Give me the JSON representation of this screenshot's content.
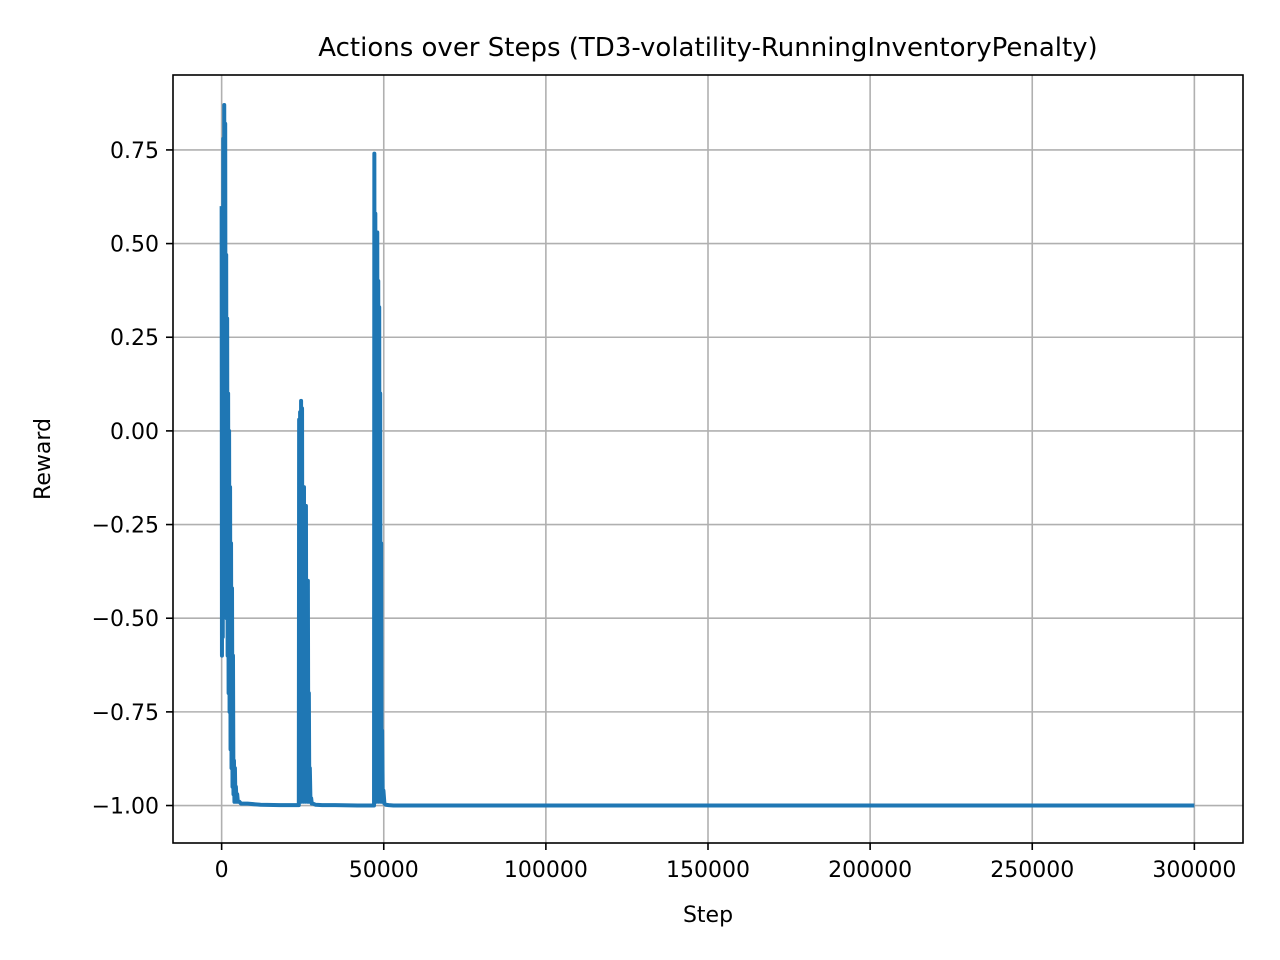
{
  "chart_data": {
    "type": "line",
    "title": "Actions over Steps (TD3-volatility-RunningInventoryPenalty)",
    "xlabel": "Step",
    "ylabel": "Reward",
    "xlim": [
      -15000,
      315000
    ],
    "ylim": [
      -1.1,
      0.95
    ],
    "x_ticks": [
      0,
      50000,
      100000,
      150000,
      200000,
      250000,
      300000
    ],
    "x_tick_labels": [
      "0",
      "50000",
      "100000",
      "150000",
      "200000",
      "250000",
      "300000"
    ],
    "y_ticks": [
      -1.0,
      -0.75,
      -0.5,
      -0.25,
      0.0,
      0.25,
      0.5,
      0.75
    ],
    "y_tick_labels": [
      "−1.00",
      "−0.75",
      "−0.50",
      "−0.25",
      "0.00",
      "0.25",
      "0.50",
      "0.75"
    ],
    "grid": true,
    "series": [
      {
        "color": "#1f77b4",
        "x": [
          0,
          100,
          200,
          350,
          500,
          650,
          800,
          950,
          1100,
          1250,
          1400,
          1550,
          1700,
          1850,
          2000,
          2150,
          2300,
          2450,
          2600,
          2750,
          2900,
          3050,
          3200,
          3350,
          3500,
          3650,
          3800,
          3950,
          4100,
          4250,
          4400,
          4600,
          4800,
          5000,
          5500,
          6000,
          8000,
          12000,
          18000,
          23800,
          23900,
          24050,
          24200,
          24350,
          24500,
          24650,
          24800,
          24950,
          25100,
          25250,
          25400,
          25550,
          25700,
          25850,
          26000,
          26150,
          26300,
          26450,
          26600,
          26750,
          26900,
          27050,
          27200,
          27400,
          27600,
          27800,
          28200,
          29000,
          31000,
          35000,
          42000,
          47000,
          47100,
          47250,
          47400,
          47550,
          47700,
          47850,
          48000,
          48150,
          48300,
          48450,
          48600,
          48750,
          48900,
          49050,
          49200,
          49350,
          49500,
          49700,
          49900,
          50200,
          50600,
          51500,
          53000,
          56000,
          65000,
          100000,
          200000,
          300000
        ],
        "values": [
          0.6,
          -0.6,
          0.35,
          -0.55,
          0.78,
          -0.2,
          0.87,
          -0.1,
          0.82,
          -0.4,
          0.47,
          -0.5,
          0.3,
          -0.6,
          0.1,
          -0.7,
          0.0,
          -0.75,
          -0.15,
          -0.85,
          -0.3,
          -0.9,
          -0.42,
          -0.95,
          -0.6,
          -0.97,
          -0.88,
          -0.99,
          -0.9,
          -0.99,
          -0.95,
          -0.99,
          -0.97,
          -0.99,
          -0.99,
          -0.995,
          -0.995,
          -0.998,
          -0.999,
          -0.999,
          0.03,
          -0.99,
          0.05,
          -0.7,
          0.08,
          -0.99,
          0.06,
          -0.9,
          -0.18,
          -0.99,
          -0.15,
          -0.95,
          -0.22,
          -0.99,
          -0.2,
          -0.97,
          -0.55,
          -0.99,
          -0.4,
          -0.99,
          -0.7,
          -0.99,
          -0.9,
          -0.99,
          -0.98,
          -0.995,
          -0.995,
          -0.998,
          -0.999,
          -0.999,
          -1.0,
          -1.0,
          0.74,
          -0.99,
          0.58,
          -0.9,
          0.5,
          -0.99,
          0.53,
          -0.95,
          0.4,
          -0.99,
          0.33,
          -0.97,
          0.1,
          -0.99,
          -0.3,
          -0.99,
          -0.8,
          -0.99,
          -0.96,
          -0.995,
          -0.998,
          -0.999,
          -1.0,
          -1.0,
          -1.0,
          -1.0,
          -1.0,
          -1.0
        ]
      }
    ]
  }
}
